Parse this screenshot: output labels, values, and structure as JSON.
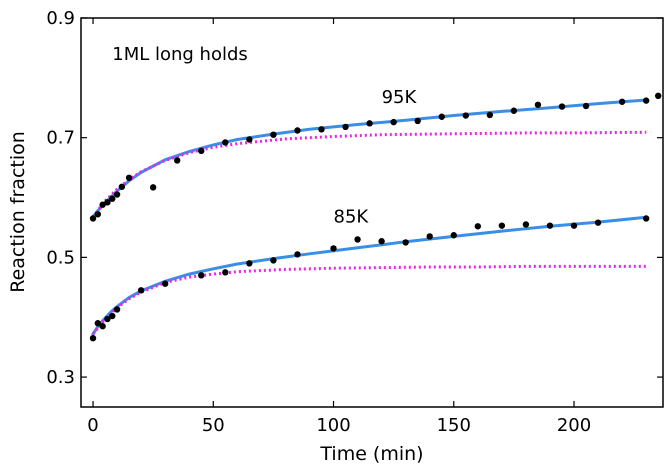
{
  "chart_data": {
    "type": "scatter",
    "title": "",
    "xlabel": "Time (min)",
    "ylabel": "Reaction fraction",
    "xlim": [
      -5,
      237
    ],
    "ylim": [
      0.25,
      0.9
    ],
    "xticks": [
      0,
      50,
      100,
      150,
      200
    ],
    "yticks": [
      0.3,
      0.5,
      0.7,
      0.9
    ],
    "xtick_labels": [
      "0",
      "50",
      "100",
      "150",
      "200"
    ],
    "ytick_labels": [
      "0.3",
      "0.5",
      "0.7",
      "0.9"
    ],
    "grid": false,
    "annotations": [
      {
        "text": "1ML long holds",
        "x": 8,
        "y": 0.83
      },
      {
        "text": "95K",
        "x": 120,
        "y": 0.758
      },
      {
        "text": "85K",
        "x": 100,
        "y": 0.558
      }
    ],
    "series": [
      {
        "kind": "points",
        "color": "#000000",
        "x": [
          0,
          2,
          4,
          6,
          8,
          10,
          12,
          15,
          25,
          35,
          45,
          55,
          65,
          75,
          85,
          95,
          105,
          115,
          125,
          135,
          145,
          155,
          165,
          175,
          185,
          195,
          205,
          220,
          230,
          235
        ],
        "y": [
          0.565,
          0.572,
          0.588,
          0.592,
          0.598,
          0.605,
          0.618,
          0.633,
          0.617,
          0.662,
          0.678,
          0.692,
          0.697,
          0.705,
          0.712,
          0.714,
          0.718,
          0.724,
          0.726,
          0.728,
          0.735,
          0.737,
          0.738,
          0.745,
          0.755,
          0.752,
          0.753,
          0.76,
          0.762,
          0.77
        ]
      },
      {
        "kind": "points",
        "color": "#000000",
        "x": [
          0,
          2,
          4,
          6,
          8,
          10,
          20,
          30,
          45,
          55,
          65,
          75,
          85,
          100,
          110,
          120,
          130,
          140,
          150,
          160,
          170,
          180,
          190,
          200,
          210,
          230
        ],
        "y": [
          0.365,
          0.39,
          0.385,
          0.397,
          0.402,
          0.413,
          0.445,
          0.456,
          0.47,
          0.475,
          0.49,
          0.495,
          0.505,
          0.515,
          0.53,
          0.527,
          0.525,
          0.535,
          0.537,
          0.552,
          0.553,
          0.555,
          0.553,
          0.553,
          0.558,
          0.565
        ]
      },
      {
        "kind": "line",
        "color": "#3b8ee6",
        "x": [
          0,
          2,
          4,
          6,
          8,
          10,
          15,
          20,
          30,
          40,
          50,
          60,
          75,
          90,
          110,
          130,
          150,
          170,
          190,
          210,
          230
        ],
        "y": [
          0.568,
          0.578,
          0.587,
          0.595,
          0.603,
          0.611,
          0.628,
          0.642,
          0.663,
          0.677,
          0.688,
          0.697,
          0.706,
          0.714,
          0.722,
          0.729,
          0.737,
          0.744,
          0.75,
          0.757,
          0.763
        ]
      },
      {
        "kind": "line",
        "color": "#3b8ee6",
        "x": [
          0,
          2,
          4,
          6,
          8,
          10,
          15,
          20,
          30,
          40,
          50,
          60,
          75,
          90,
          110,
          130,
          150,
          170,
          190,
          210,
          230
        ],
        "y": [
          0.372,
          0.384,
          0.394,
          0.403,
          0.411,
          0.418,
          0.433,
          0.444,
          0.46,
          0.472,
          0.481,
          0.489,
          0.498,
          0.506,
          0.516,
          0.526,
          0.535,
          0.544,
          0.552,
          0.559,
          0.567
        ]
      },
      {
        "kind": "dotted",
        "color": "#ee22ee",
        "x": [
          0,
          5,
          10,
          15,
          20,
          30,
          40,
          50,
          60,
          80,
          100,
          120,
          140,
          160,
          180,
          200,
          230
        ],
        "y": [
          0.568,
          0.594,
          0.614,
          0.63,
          0.643,
          0.662,
          0.675,
          0.684,
          0.69,
          0.698,
          0.702,
          0.705,
          0.706,
          0.707,
          0.708,
          0.708,
          0.709
        ]
      },
      {
        "kind": "dotted",
        "color": "#ee22ee",
        "x": [
          0,
          5,
          10,
          15,
          20,
          30,
          40,
          50,
          60,
          80,
          100,
          120,
          140,
          160,
          180,
          200,
          230
        ],
        "y": [
          0.372,
          0.397,
          0.416,
          0.431,
          0.442,
          0.458,
          0.467,
          0.472,
          0.476,
          0.48,
          0.482,
          0.483,
          0.484,
          0.484,
          0.485,
          0.485,
          0.485
        ]
      }
    ]
  }
}
